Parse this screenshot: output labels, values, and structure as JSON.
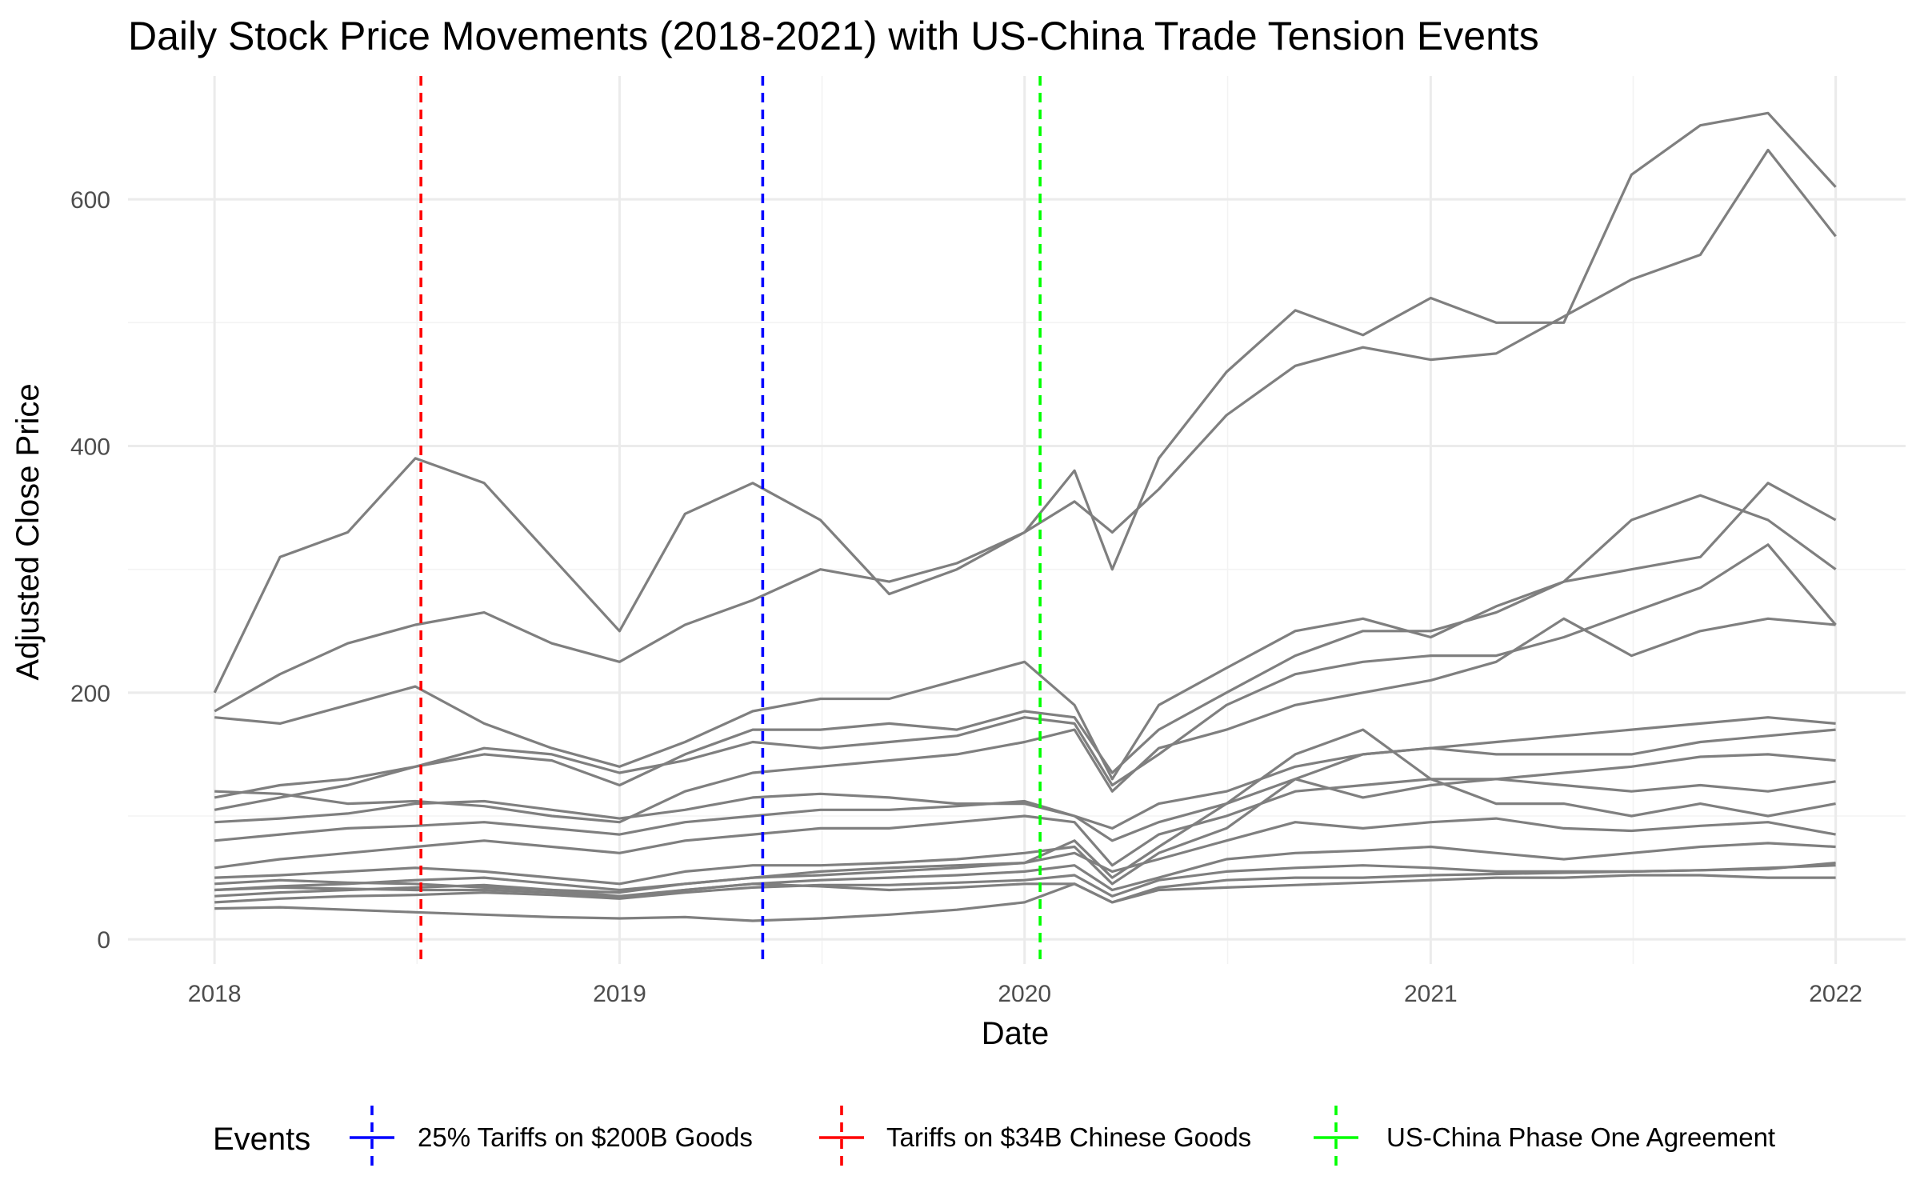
{
  "chart_data": {
    "type": "line",
    "title": "Daily Stock Price Movements (2018-2021) with US-China Trade Tension Events",
    "xlabel": "Date",
    "ylabel": "Adjusted Close Price",
    "xlim": [
      "2017-10-15",
      "2022-03-05"
    ],
    "ylim": [
      -20,
      700
    ],
    "x_ticks": [
      {
        "date": "2018-01-01",
        "label": "2018"
      },
      {
        "date": "2019-01-01",
        "label": "2019"
      },
      {
        "date": "2020-01-01",
        "label": "2020"
      },
      {
        "date": "2021-01-01",
        "label": "2021"
      },
      {
        "date": "2022-01-01",
        "label": "2022"
      }
    ],
    "y_ticks": [
      0,
      200,
      400,
      600
    ],
    "grid": true,
    "series_color": "#7f7f7f",
    "x": [
      "2018-01-01",
      "2018-03-01",
      "2018-05-01",
      "2018-07-01",
      "2018-09-01",
      "2018-11-01",
      "2019-01-01",
      "2019-03-01",
      "2019-05-01",
      "2019-07-01",
      "2019-09-01",
      "2019-11-01",
      "2020-01-01",
      "2020-02-15",
      "2020-03-20",
      "2020-05-01",
      "2020-07-01",
      "2020-09-01",
      "2020-11-01",
      "2021-01-01",
      "2021-03-01",
      "2021-05-01",
      "2021-07-01",
      "2021-09-01",
      "2021-11-01",
      "2022-01-01"
    ],
    "series": [
      {
        "values": [
          200,
          310,
          330,
          390,
          370,
          310,
          250,
          345,
          370,
          340,
          280,
          300,
          330,
          380,
          300,
          390,
          460,
          510,
          490,
          520,
          500,
          500,
          620,
          660,
          670,
          610
        ]
      },
      {
        "values": [
          185,
          215,
          240,
          255,
          265,
          240,
          225,
          255,
          275,
          300,
          290,
          305,
          330,
          355,
          330,
          365,
          425,
          465,
          480,
          470,
          475,
          505,
          535,
          555,
          640,
          570
        ]
      },
      {
        "values": [
          180,
          175,
          190,
          205,
          175,
          155,
          140,
          160,
          185,
          195,
          195,
          210,
          225,
          190,
          130,
          190,
          220,
          250,
          260,
          245,
          270,
          290,
          340,
          360,
          340,
          300
        ]
      },
      {
        "values": [
          115,
          125,
          130,
          140,
          150,
          145,
          125,
          150,
          170,
          170,
          175,
          170,
          185,
          180,
          135,
          170,
          200,
          230,
          250,
          250,
          265,
          290,
          300,
          310,
          370,
          340
        ]
      },
      {
        "values": [
          105,
          115,
          125,
          140,
          155,
          150,
          135,
          145,
          160,
          155,
          160,
          165,
          180,
          175,
          125,
          150,
          190,
          215,
          225,
          230,
          230,
          245,
          265,
          285,
          320,
          255
        ]
      },
      {
        "values": [
          120,
          118,
          110,
          112,
          108,
          100,
          95,
          120,
          135,
          140,
          145,
          150,
          160,
          170,
          120,
          155,
          170,
          190,
          200,
          210,
          225,
          260,
          230,
          250,
          260,
          255
        ]
      },
      {
        "values": [
          95,
          98,
          102,
          110,
          112,
          105,
          98,
          105,
          115,
          118,
          115,
          110,
          110,
          100,
          90,
          110,
          120,
          140,
          150,
          155,
          160,
          165,
          170,
          175,
          180,
          175
        ]
      },
      {
        "values": [
          80,
          85,
          90,
          92,
          95,
          90,
          85,
          95,
          100,
          105,
          105,
          108,
          112,
          100,
          80,
          95,
          110,
          130,
          150,
          155,
          150,
          150,
          150,
          160,
          165,
          170
        ]
      },
      {
        "values": [
          58,
          65,
          70,
          75,
          80,
          75,
          70,
          80,
          85,
          90,
          90,
          95,
          100,
          95,
          60,
          85,
          100,
          120,
          125,
          130,
          130,
          135,
          140,
          148,
          150,
          145
        ]
      },
      {
        "values": [
          50,
          52,
          55,
          58,
          55,
          50,
          45,
          55,
          60,
          60,
          62,
          65,
          70,
          75,
          45,
          70,
          90,
          130,
          115,
          125,
          130,
          125,
          120,
          125,
          120,
          128
        ]
      },
      {
        "values": [
          45,
          48,
          46,
          45,
          42,
          40,
          38,
          45,
          50,
          52,
          55,
          58,
          62,
          80,
          50,
          75,
          110,
          150,
          170,
          130,
          110,
          110,
          100,
          110,
          100,
          110
        ]
      },
      {
        "values": [
          40,
          43,
          45,
          48,
          50,
          45,
          40,
          45,
          50,
          55,
          58,
          60,
          62,
          70,
          55,
          65,
          80,
          95,
          90,
          95,
          98,
          90,
          88,
          92,
          95,
          85
        ]
      },
      {
        "values": [
          35,
          38,
          40,
          42,
          44,
          40,
          35,
          40,
          45,
          48,
          50,
          52,
          55,
          60,
          40,
          50,
          65,
          70,
          72,
          75,
          70,
          65,
          70,
          75,
          78,
          75
        ]
      },
      {
        "values": [
          30,
          33,
          35,
          36,
          38,
          36,
          33,
          38,
          42,
          44,
          44,
          46,
          48,
          52,
          35,
          48,
          55,
          58,
          60,
          58,
          55,
          55,
          55,
          56,
          58,
          60
        ]
      },
      {
        "values": [
          40,
          42,
          41,
          40,
          40,
          38,
          34,
          40,
          45,
          43,
          40,
          42,
          45,
          45,
          30,
          40,
          42,
          44,
          46,
          48,
          50,
          50,
          52,
          52,
          50,
          50
        ]
      },
      {
        "values": [
          25,
          26,
          24,
          22,
          20,
          18,
          17,
          18,
          15,
          17,
          20,
          24,
          30,
          45,
          30,
          42,
          48,
          50,
          50,
          52,
          53,
          54,
          55,
          56,
          57,
          62
        ]
      }
    ],
    "events": [
      {
        "date": "2018-07-06",
        "label": "Tariffs on $34B Chinese Goods",
        "color": "#ff0000"
      },
      {
        "date": "2019-05-10",
        "label": "25% Tariffs on $200B Goods",
        "color": "#0000ff"
      },
      {
        "date": "2020-01-15",
        "label": "US-China Phase One Agreement",
        "color": "#00ff00"
      }
    ],
    "legend": {
      "title": "Events",
      "position": "bottom",
      "items": [
        {
          "label": "25% Tariffs on $200B Goods",
          "color": "#0000ff"
        },
        {
          "label": "Tariffs on $34B Chinese Goods",
          "color": "#ff0000"
        },
        {
          "label": "US-China Phase One Agreement",
          "color": "#00ff00"
        }
      ]
    }
  }
}
